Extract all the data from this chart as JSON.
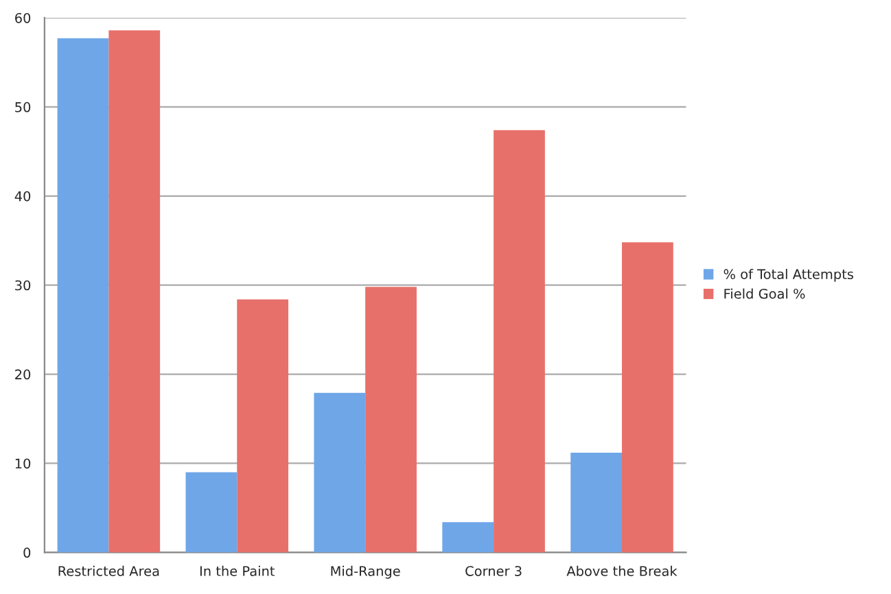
{
  "chart_data": {
    "type": "bar",
    "categories": [
      "Restricted Area",
      "In the Paint",
      "Mid-Range",
      "Corner 3",
      "Above the Break"
    ],
    "series": [
      {
        "name": "% of Total Attempts",
        "color": "#6fa6e8",
        "values": [
          57.7,
          9.0,
          17.9,
          3.4,
          11.2
        ]
      },
      {
        "name": "Field Goal %",
        "color": "#e8706a",
        "values": [
          58.6,
          28.4,
          29.8,
          47.4,
          34.8
        ]
      }
    ],
    "ylim": [
      0,
      60
    ],
    "yticks": [
      0,
      10,
      20,
      30,
      40,
      50,
      60
    ],
    "grid": "y",
    "legend": "right"
  }
}
